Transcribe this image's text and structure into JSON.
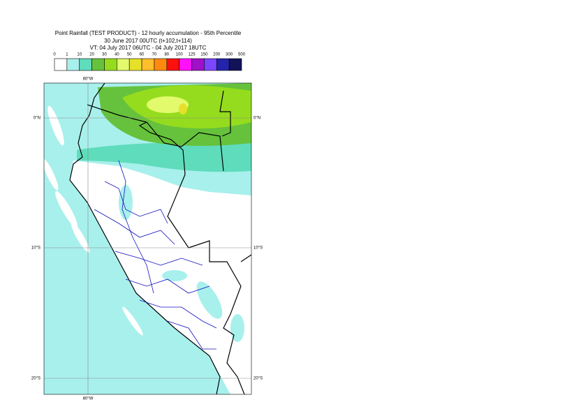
{
  "header": {
    "title": "Point Rainfall (TEST PRODUCT) - 12 hourly accumulation - 95th Percentile",
    "base_time": "30 June 2017 00UTC (t+102,t+114)",
    "valid_time": "VT: 04 July 2017 06UTC - 04 July 2017 18UTC"
  },
  "legend": {
    "levels": [
      "0",
      "1",
      "10",
      "20",
      "30",
      "40",
      "50",
      "60",
      "70",
      "80",
      "100",
      "125",
      "150",
      "200",
      "300",
      "500"
    ],
    "colors": [
      "#ffffff",
      "#a8f0ec",
      "#5fdcbc",
      "#66c23c",
      "#96dc1e",
      "#e2fa6c",
      "#e6e02a",
      "#ffbe2a",
      "#ff8a10",
      "#ff1010",
      "#ff10ff",
      "#a010c8",
      "#7a46ff",
      "#2424aa",
      "#121258"
    ]
  },
  "map": {
    "grid_labels": {
      "top_lon": "80°W",
      "bottom_lon": "80°W",
      "left_eq": "0°N",
      "right_eq": "0°N",
      "left_10s": "10°S",
      "right_10s": "10°S",
      "left_20s": "20°S",
      "right_20s": "20°S"
    }
  }
}
